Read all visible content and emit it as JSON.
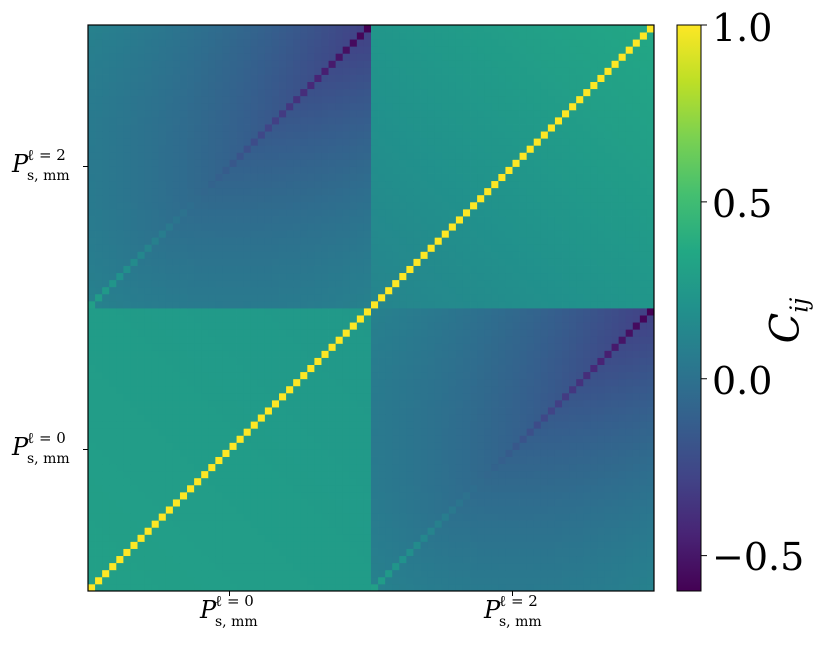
{
  "chart_data": {
    "type": "heatmap",
    "matrix_blocks": 2,
    "bins_per_block": 40,
    "block_labels": {
      "x": [
        {
          "main": "P",
          "sup": "ℓ = 0",
          "sub": "s, mm"
        },
        {
          "main": "P",
          "sup": "ℓ = 2",
          "sub": "s, mm"
        }
      ],
      "y": [
        {
          "main": "P",
          "sup": "ℓ = 0",
          "sub": "s, mm"
        },
        {
          "main": "P",
          "sup": "ℓ = 2",
          "sub": "s, mm"
        }
      ]
    },
    "block_correlation_estimates": {
      "monopole_monopole": {
        "diagonal": 1.0,
        "off_diagonal_low_k": 0.3,
        "off_diagonal_high_k": 0.25
      },
      "quadrupole_quadrupole": {
        "diagonal": 1.0,
        "off_diagonal_low_k": 0.12,
        "off_diagonal_high_k": 0.35
      },
      "monopole_quadrupole": {
        "diagonal_low_k": 0.3,
        "diagonal_high_k": -0.6,
        "off_diagonal_low_k": 0.1,
        "off_diagonal_high_k": -0.3
      }
    },
    "colorbar": {
      "label": "C",
      "label_sub": "ij",
      "range": [
        -0.6,
        1.0
      ],
      "ticks": [
        "−0.5",
        "0.0",
        "0.5",
        "1.0"
      ],
      "tick_values": [
        -0.5,
        0.0,
        0.5,
        1.0
      ],
      "colormap": "viridis"
    }
  }
}
